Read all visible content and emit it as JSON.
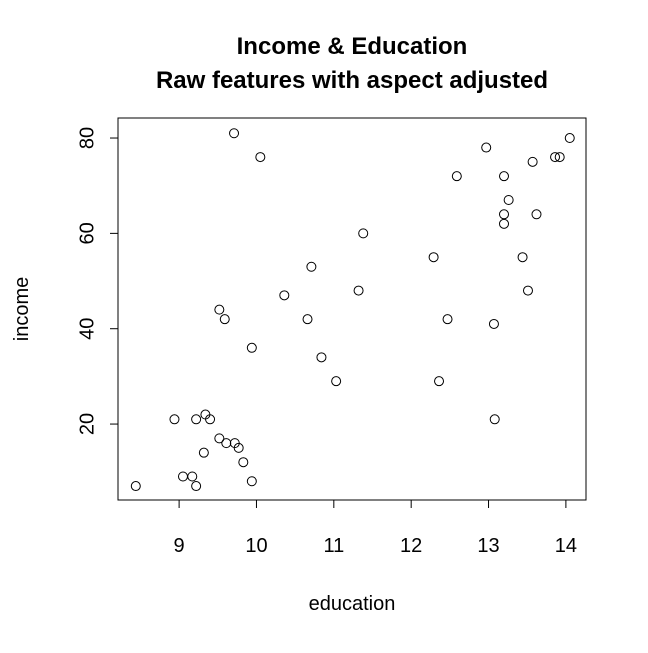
{
  "chart_data": {
    "type": "scatter",
    "title": "Income & Education",
    "subtitle": "Raw features with aspect adjusted",
    "x_label": "education",
    "y_label": "income",
    "color": "#000000",
    "x": [
      8.44,
      8.94,
      9.05,
      9.17,
      9.22,
      9.22,
      9.32,
      9.34,
      9.4,
      9.52,
      9.61,
      9.52,
      9.59,
      9.71,
      9.72,
      9.77,
      9.83,
      9.94,
      9.94,
      10.05,
      10.36,
      10.66,
      10.71,
      10.84,
      11.03,
      11.32,
      11.38,
      12.29,
      12.36,
      12.47,
      12.59,
      12.97,
      13.07,
      13.08,
      13.2,
      13.2,
      13.2,
      13.26,
      13.44,
      13.51,
      13.57,
      13.62,
      13.86,
      13.92,
      14.05
    ],
    "values": [
      7,
      21,
      9,
      9,
      7,
      21,
      14,
      22,
      21,
      17,
      16,
      44,
      42,
      81,
      16,
      15,
      12,
      36,
      8,
      76,
      47,
      42,
      53,
      34,
      29,
      48,
      60,
      55,
      29,
      42,
      72,
      78,
      41,
      21,
      72,
      64,
      62,
      67,
      55,
      48,
      75,
      64,
      76,
      76,
      80
    ],
    "xlim": [
      8.21,
      14.26
    ],
    "ylim": [
      4.07,
      84.2
    ],
    "xticks": [
      9,
      10,
      11,
      12,
      13,
      14
    ],
    "yticks": [
      20,
      40,
      60,
      80
    ],
    "grid": false
  }
}
